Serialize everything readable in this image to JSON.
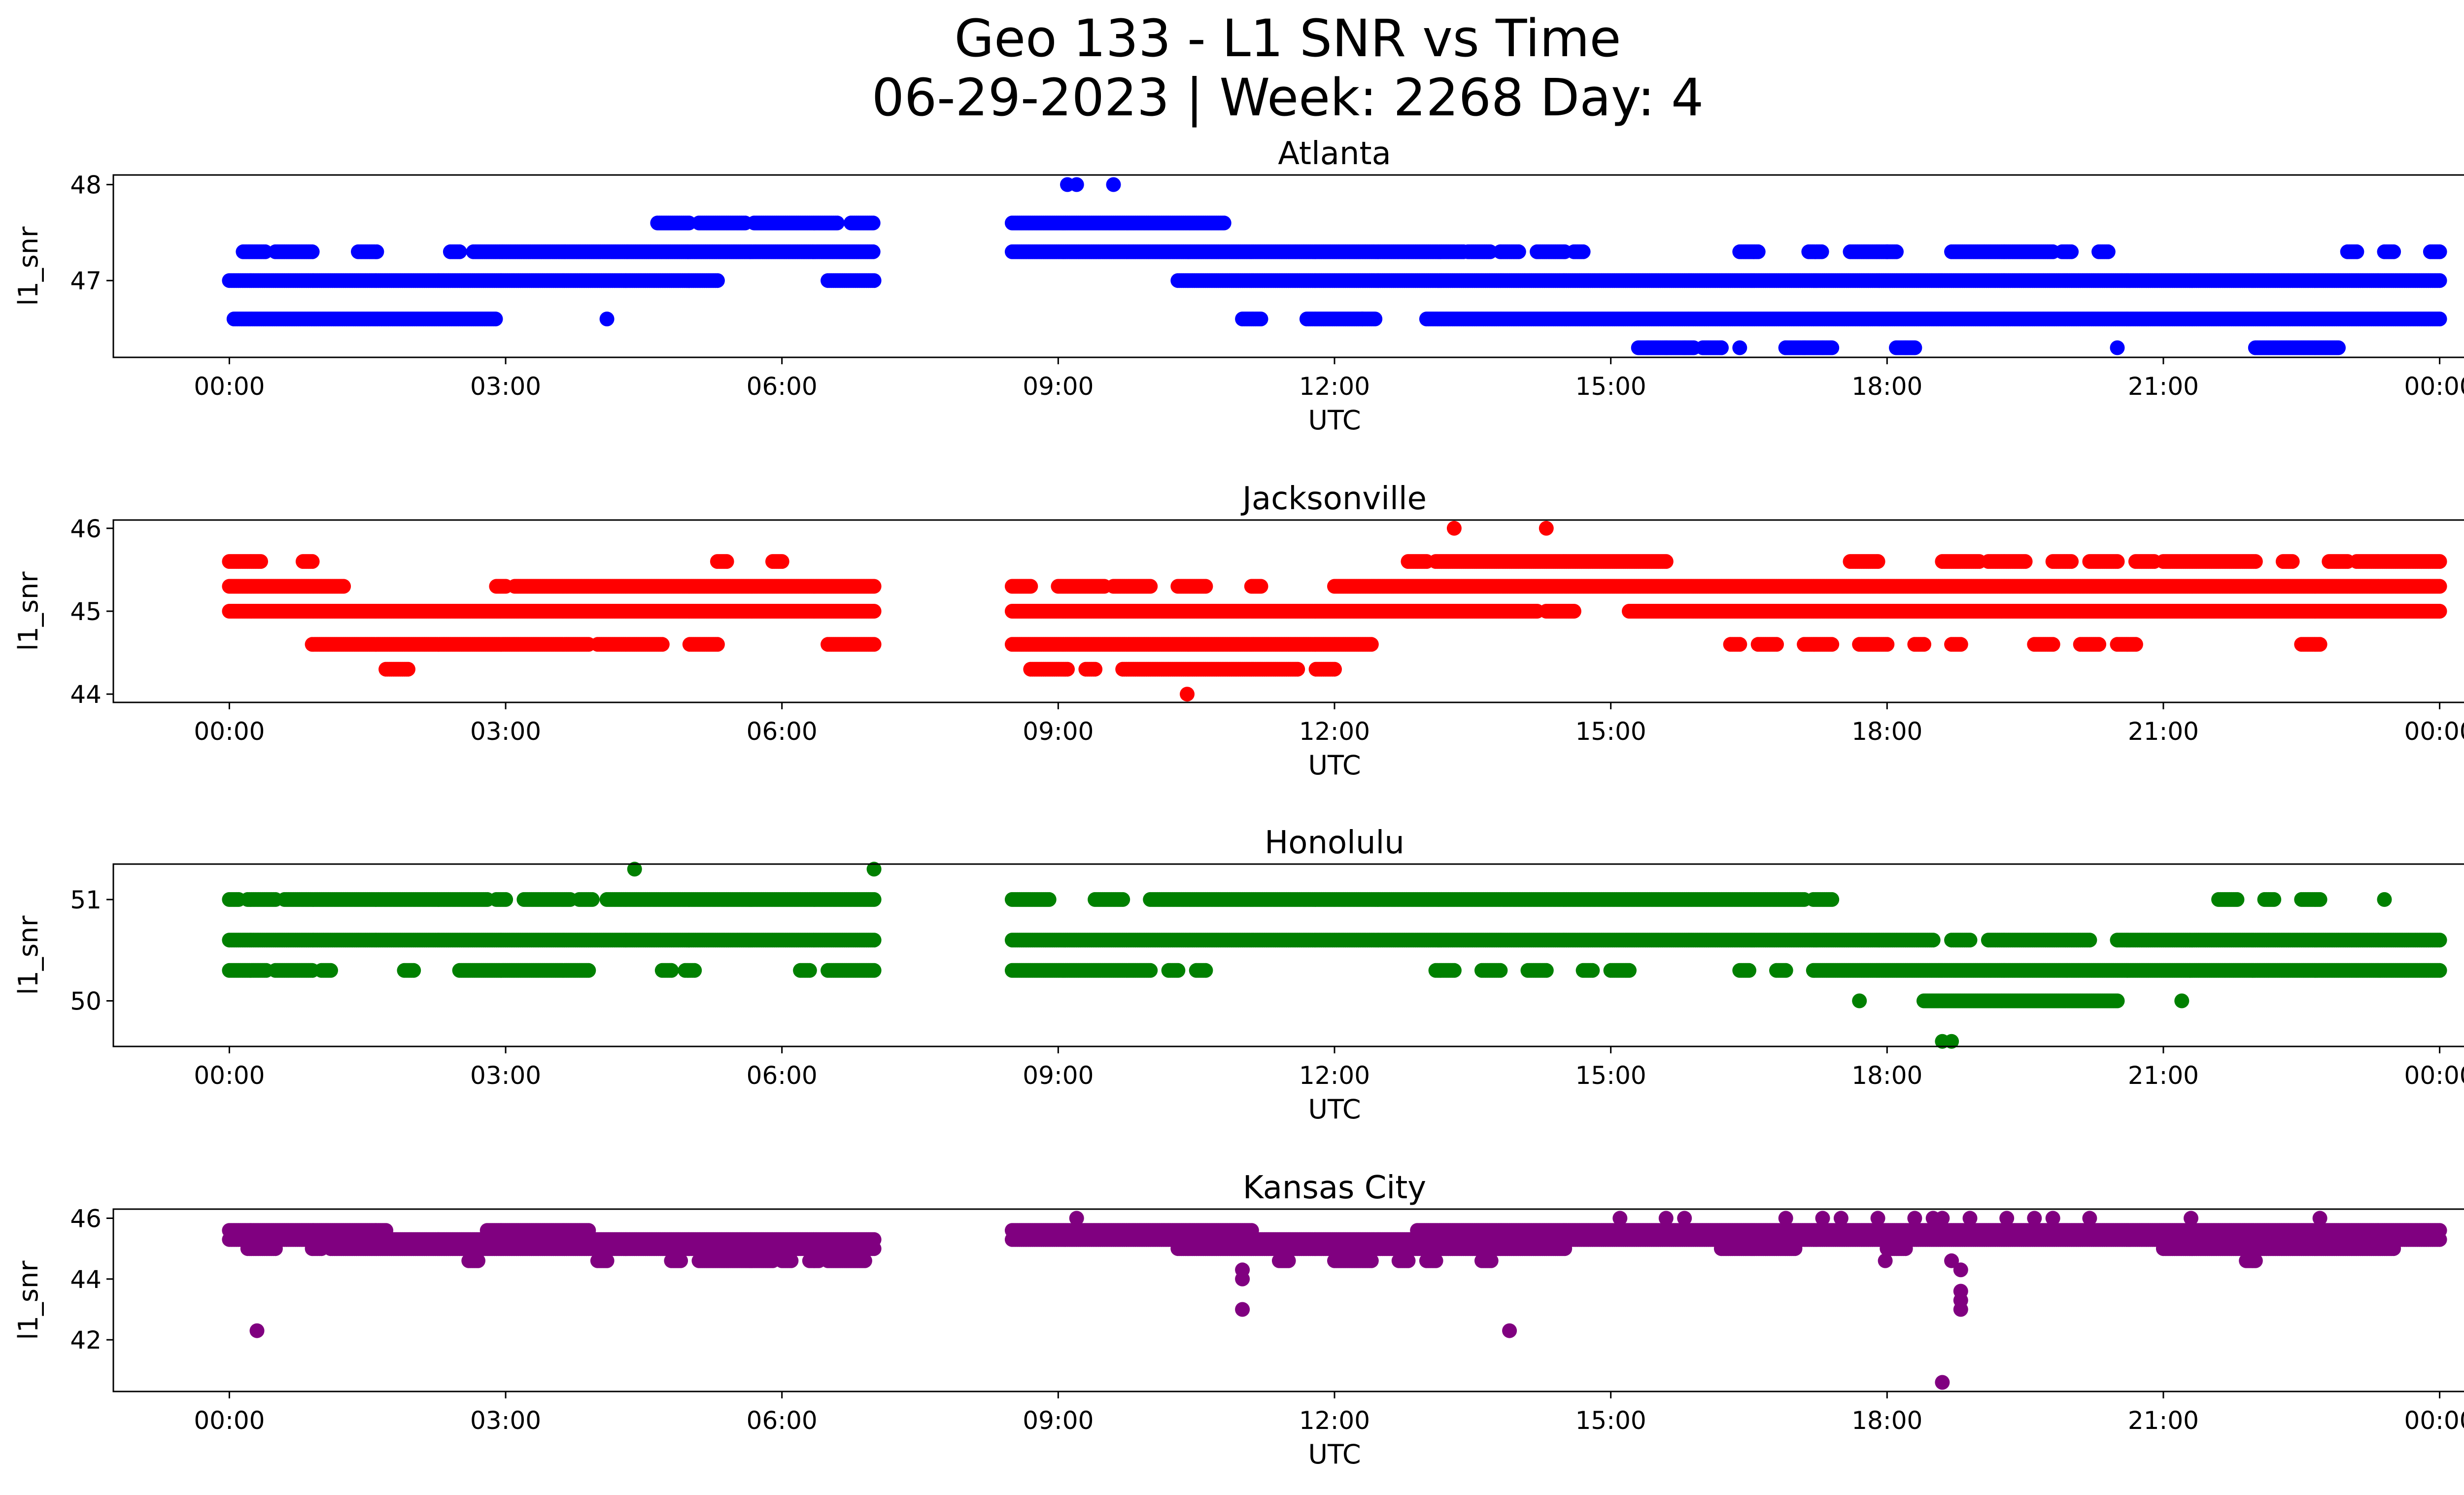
{
  "figure": {
    "title_line1": "Geo 133 - L1 SNR vs Time",
    "title_line2": "06-29-2023 | Week: 2268 Day: 4"
  },
  "chart_data": [
    {
      "type": "scatter",
      "title": "Atlanta",
      "xlabel": "UTC",
      "ylabel": "l1_snr",
      "color": "#0000ff",
      "x_range_hours": [
        0,
        24
      ],
      "x_ticks": [
        "00:00",
        "03:00",
        "06:00",
        "09:00",
        "12:00",
        "15:00",
        "18:00",
        "21:00",
        "00:00"
      ],
      "ylim": [
        46.2,
        48.1
      ],
      "y_ticks": [
        47,
        48
      ],
      "series": [
        {
          "y": 47.6,
          "x_hours": [
            [
              4.65,
              5.0
            ],
            [
              5.1,
              5.6
            ],
            [
              5.7,
              6.6
            ],
            [
              6.75,
              7.0
            ],
            [
              8.5,
              10.8
            ]
          ]
        },
        {
          "y": 47.3,
          "x_hours": [
            [
              0.15,
              0.4
            ],
            [
              0.5,
              0.9
            ],
            [
              1.4,
              1.6
            ],
            [
              2.4,
              2.5
            ],
            [
              2.65,
              7.0
            ],
            [
              8.5,
              13.4
            ],
            [
              13.45,
              13.7
            ],
            [
              13.8,
              14.0
            ],
            [
              14.2,
              14.5
            ],
            [
              14.6,
              14.7
            ],
            [
              16.4,
              16.6
            ],
            [
              17.15,
              17.3
            ],
            [
              17.6,
              18.0
            ],
            [
              18.0,
              18.1
            ],
            [
              18.7,
              19.8
            ],
            [
              19.9,
              20.0
            ],
            [
              20.3,
              20.4
            ],
            [
              23.0,
              23.1
            ],
            [
              23.4,
              23.5
            ],
            [
              23.9,
              24.0
            ]
          ]
        },
        {
          "y": 47.0,
          "x_hours": [
            [
              0.0,
              5.3
            ],
            [
              6.5,
              7.0
            ],
            [
              10.3,
              24.0
            ]
          ]
        },
        {
          "y": 46.6,
          "x_hours": [
            [
              0.05,
              2.9
            ],
            [
              11.0,
              11.2
            ],
            [
              11.7,
              12.3
            ],
            [
              12.3,
              12.45
            ],
            [
              13.0,
              24.0
            ]
          ]
        }
      ],
      "points": [
        {
          "x": 4.1,
          "y": 46.6
        },
        {
          "x": 9.1,
          "y": 48.0
        },
        {
          "x": 9.2,
          "y": 48.0
        },
        {
          "x": 9.6,
          "y": 48.0
        },
        {
          "x": 15.4,
          "y": 46.3
        },
        {
          "x": 15.6,
          "y": 46.3
        },
        {
          "x": 15.8,
          "y": 46.3
        },
        {
          "x": 16.2,
          "y": 46.3
        },
        {
          "x": 16.4,
          "y": 46.3
        },
        {
          "x": 16.9,
          "y": 46.3
        },
        {
          "x": 17.1,
          "y": 46.3
        },
        {
          "x": 17.3,
          "y": 46.3
        },
        {
          "x": 18.2,
          "y": 46.3
        },
        {
          "x": 20.5,
          "y": 46.3
        }
      ],
      "x_segments": [
        {
          "y": 46.3,
          "x_hours": [
            [
              15.3,
              15.9
            ],
            [
              16.0,
              16.2
            ],
            [
              16.9,
              17.4
            ],
            [
              18.1,
              18.3
            ],
            [
              22.0,
              22.9
            ]
          ]
        }
      ]
    },
    {
      "type": "scatter",
      "title": "Jacksonville",
      "xlabel": "UTC",
      "ylabel": "l1_snr",
      "color": "#ff0000",
      "x_range_hours": [
        0,
        24
      ],
      "x_ticks": [
        "00:00",
        "03:00",
        "06:00",
        "09:00",
        "12:00",
        "15:00",
        "18:00",
        "21:00",
        "00:00"
      ],
      "ylim": [
        43.9,
        46.1
      ],
      "y_ticks": [
        44,
        45,
        46
      ],
      "series": [
        {
          "y": 45.6,
          "x_hours": [
            [
              0.0,
              0.35
            ],
            [
              0.8,
              0.9
            ],
            [
              5.3,
              5.4
            ],
            [
              5.9,
              6.0
            ],
            [
              12.8,
              13.0
            ],
            [
              13.1,
              15.6
            ],
            [
              17.6,
              17.9
            ],
            [
              18.6,
              19.0
            ],
            [
              19.1,
              19.5
            ],
            [
              19.8,
              20.0
            ],
            [
              20.2,
              20.5
            ],
            [
              20.7,
              20.9
            ],
            [
              21.0,
              22.0
            ],
            [
              22.3,
              22.4
            ],
            [
              22.8,
              23.0
            ],
            [
              23.1,
              24.0
            ]
          ]
        },
        {
          "y": 45.3,
          "x_hours": [
            [
              0.0,
              1.25
            ],
            [
              2.9,
              3.0
            ],
            [
              3.1,
              7.0
            ],
            [
              8.5,
              8.7
            ],
            [
              9.0,
              9.5
            ],
            [
              9.6,
              10.0
            ],
            [
              10.3,
              10.6
            ],
            [
              11.1,
              11.2
            ],
            [
              12.0,
              24.0
            ]
          ]
        },
        {
          "y": 45.0,
          "x_hours": [
            [
              0.0,
              7.0
            ],
            [
              8.5,
              14.2
            ],
            [
              14.3,
              14.6
            ],
            [
              15.2,
              24.0
            ]
          ]
        },
        {
          "y": 44.6,
          "x_hours": [
            [
              0.9,
              3.9
            ],
            [
              4.0,
              4.7
            ],
            [
              5.0,
              5.3
            ],
            [
              6.5,
              7.0
            ],
            [
              8.5,
              12.4
            ],
            [
              16.3,
              16.4
            ],
            [
              16.6,
              16.8
            ],
            [
              17.1,
              17.4
            ],
            [
              17.7,
              18.0
            ],
            [
              18.3,
              18.4
            ],
            [
              18.7,
              18.8
            ],
            [
              19.6,
              19.8
            ],
            [
              20.1,
              20.3
            ],
            [
              20.5,
              20.7
            ],
            [
              22.5,
              22.7
            ]
          ]
        },
        {
          "y": 44.3,
          "x_hours": [
            [
              1.7,
              1.95
            ],
            [
              8.7,
              9.1
            ],
            [
              9.3,
              9.4
            ],
            [
              9.7,
              11.6
            ],
            [
              11.8,
              12.0
            ]
          ]
        }
      ],
      "points": [
        {
          "x": 10.4,
          "y": 44.0
        },
        {
          "x": 13.3,
          "y": 46.0
        },
        {
          "x": 14.3,
          "y": 46.0
        }
      ]
    },
    {
      "type": "scatter",
      "title": "Honolulu",
      "xlabel": "UTC",
      "ylabel": "l1_snr",
      "color": "#008000",
      "x_range_hours": [
        0,
        24
      ],
      "x_ticks": [
        "00:00",
        "03:00",
        "06:00",
        "09:00",
        "12:00",
        "15:00",
        "18:00",
        "21:00",
        "00:00"
      ],
      "ylim": [
        49.55,
        51.35
      ],
      "y_ticks": [
        50,
        51
      ],
      "series": [
        {
          "y": 51.0,
          "x_hours": [
            [
              0.0,
              0.1
            ],
            [
              0.2,
              0.5
            ],
            [
              0.6,
              2.8
            ],
            [
              2.9,
              3.0
            ],
            [
              3.2,
              3.7
            ],
            [
              3.8,
              3.95
            ],
            [
              4.1,
              7.0
            ],
            [
              8.5,
              8.9
            ],
            [
              9.4,
              9.7
            ],
            [
              10.0,
              17.1
            ],
            [
              17.2,
              17.4
            ],
            [
              21.6,
              21.8
            ],
            [
              22.1,
              22.2
            ],
            [
              22.5,
              22.7
            ]
          ]
        },
        {
          "y": 50.6,
          "x_hours": [
            [
              0.0,
              7.0
            ],
            [
              8.5,
              18.5
            ],
            [
              18.7,
              18.9
            ],
            [
              19.1,
              20.2
            ],
            [
              20.5,
              24.0
            ]
          ]
        },
        {
          "y": 50.3,
          "x_hours": [
            [
              0.0,
              0.4
            ],
            [
              0.5,
              0.9
            ],
            [
              1.0,
              1.1
            ],
            [
              1.9,
              2.0
            ],
            [
              2.5,
              3.9
            ],
            [
              4.7,
              4.8
            ],
            [
              4.95,
              5.05
            ],
            [
              6.2,
              6.3
            ],
            [
              6.5,
              7.0
            ],
            [
              8.5,
              10.0
            ],
            [
              10.5,
              10.6
            ],
            [
              10.2,
              10.3
            ],
            [
              13.1,
              13.3
            ],
            [
              13.6,
              13.8
            ],
            [
              14.1,
              14.3
            ],
            [
              14.7,
              14.8
            ],
            [
              15.0,
              15.2
            ],
            [
              16.4,
              16.5
            ],
            [
              16.8,
              16.9
            ],
            [
              17.2,
              24.0
            ]
          ]
        },
        {
          "y": 50.0,
          "x_hours": [
            [
              18.4,
              20.5
            ]
          ]
        }
      ],
      "points": [
        {
          "x": 4.4,
          "y": 51.3
        },
        {
          "x": 7.0,
          "y": 51.3
        },
        {
          "x": 23.4,
          "y": 51.0
        },
        {
          "x": 17.7,
          "y": 50.0
        },
        {
          "x": 21.2,
          "y": 50.0
        },
        {
          "x": 18.6,
          "y": 49.6
        },
        {
          "x": 18.7,
          "y": 49.6
        }
      ]
    },
    {
      "type": "scatter",
      "title": "Kansas City",
      "xlabel": "UTC",
      "ylabel": "l1_snr",
      "color": "#800080",
      "x_range_hours": [
        0,
        24
      ],
      "x_ticks": [
        "00:00",
        "03:00",
        "06:00",
        "09:00",
        "12:00",
        "15:00",
        "18:00",
        "21:00",
        "00:00"
      ],
      "ylim": [
        40.3,
        46.3
      ],
      "y_ticks": [
        42,
        44,
        46
      ],
      "series": [
        {
          "y": 45.6,
          "x_hours": [
            [
              0.0,
              1.7
            ],
            [
              2.8,
              3.9
            ],
            [
              8.5,
              11.1
            ],
            [
              12.9,
              24.0
            ]
          ]
        },
        {
          "y": 45.3,
          "x_hours": [
            [
              0.0,
              7.0
            ],
            [
              8.5,
              24.0
            ]
          ]
        },
        {
          "y": 45.0,
          "x_hours": [
            [
              0.2,
              0.5
            ],
            [
              0.9,
              1.0
            ],
            [
              1.1,
              7.0
            ],
            [
              10.3,
              14.5
            ],
            [
              16.2,
              17.0
            ],
            [
              18.0,
              18.2
            ],
            [
              21.0,
              23.5
            ]
          ]
        },
        {
          "y": 44.6,
          "x_hours": [
            [
              2.6,
              2.7
            ],
            [
              4.0,
              4.1
            ],
            [
              4.8,
              4.9
            ],
            [
              5.1,
              5.9
            ],
            [
              6.0,
              6.1
            ],
            [
              6.3,
              6.4
            ],
            [
              6.5,
              6.9
            ],
            [
              11.4,
              11.5
            ],
            [
              12.0,
              12.4
            ],
            [
              12.7,
              12.8
            ],
            [
              13.0,
              13.1
            ],
            [
              13.6,
              13.7
            ],
            [
              21.9,
              22.0
            ]
          ]
        }
      ],
      "points": [
        {
          "x": 0.3,
          "y": 42.3
        },
        {
          "x": 11.0,
          "y": 43.0
        },
        {
          "x": 13.9,
          "y": 42.3
        },
        {
          "x": 18.6,
          "y": 40.6
        },
        {
          "x": 11.0,
          "y": 44.0
        },
        {
          "x": 11.0,
          "y": 44.3
        },
        {
          "x": 18.8,
          "y": 43.0
        },
        {
          "x": 18.8,
          "y": 43.3
        },
        {
          "x": 18.8,
          "y": 43.6
        },
        {
          "x": 18.8,
          "y": 44.3
        },
        {
          "x": 18.7,
          "y": 44.6
        },
        {
          "x": 17.98,
          "y": 44.6
        },
        {
          "x": 9.2,
          "y": 46.0
        },
        {
          "x": 15.1,
          "y": 46.0
        },
        {
          "x": 15.6,
          "y": 46.0
        },
        {
          "x": 15.8,
          "y": 46.0
        },
        {
          "x": 16.9,
          "y": 46.0
        },
        {
          "x": 17.3,
          "y": 46.0
        },
        {
          "x": 17.5,
          "y": 46.0
        },
        {
          "x": 17.9,
          "y": 46.0
        },
        {
          "x": 18.3,
          "y": 46.0
        },
        {
          "x": 18.5,
          "y": 46.0
        },
        {
          "x": 18.6,
          "y": 46.0
        },
        {
          "x": 18.9,
          "y": 46.0
        },
        {
          "x": 19.3,
          "y": 46.0
        },
        {
          "x": 19.6,
          "y": 46.0
        },
        {
          "x": 19.8,
          "y": 46.0
        },
        {
          "x": 20.2,
          "y": 46.0
        },
        {
          "x": 21.3,
          "y": 46.0
        },
        {
          "x": 22.7,
          "y": 46.0
        }
      ]
    }
  ]
}
